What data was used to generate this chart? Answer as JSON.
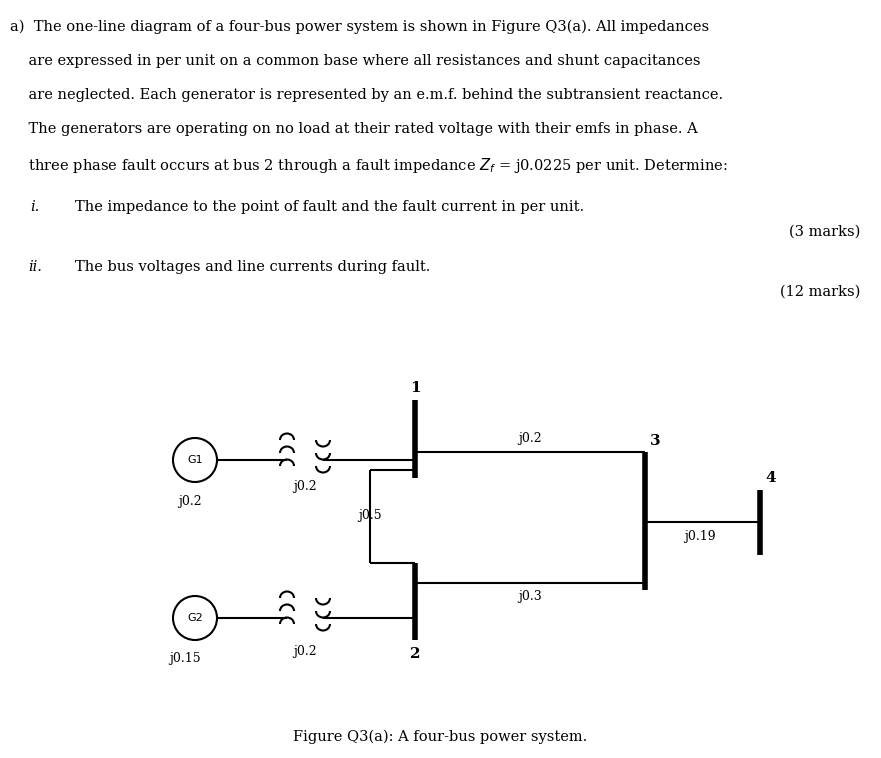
{
  "title_text": "Figure Q3(a): A four-bus power system.",
  "header_lines": [
    "a)  The one-line diagram of a four-bus power system is shown in Figure Q3(a). All impedances",
    "    are expressed in per unit on a common base where all resistances and shunt capacitances",
    "    are neglected. Each generator is represented by an e.m.f. behind the subtransient reactance.",
    "    The generators are operating on no load at their rated voltage with their emfs in phase. A",
    "    three phase fault occurs at bus 2 through a fault impedance Zₙ = j0.0225 per unit. Determine:"
  ],
  "subquestions": [
    {
      "label": "i.",
      "text": "The impedance to the point of fault and the fault current in per unit.",
      "marks": "(3 marks)"
    },
    {
      "label": "ii.",
      "text": "The bus voltages and line currents during fault.",
      "marks": "(12 marks)"
    }
  ],
  "bg_color": "#ffffff",
  "line_color": "#000000",
  "text_color": "#000000"
}
